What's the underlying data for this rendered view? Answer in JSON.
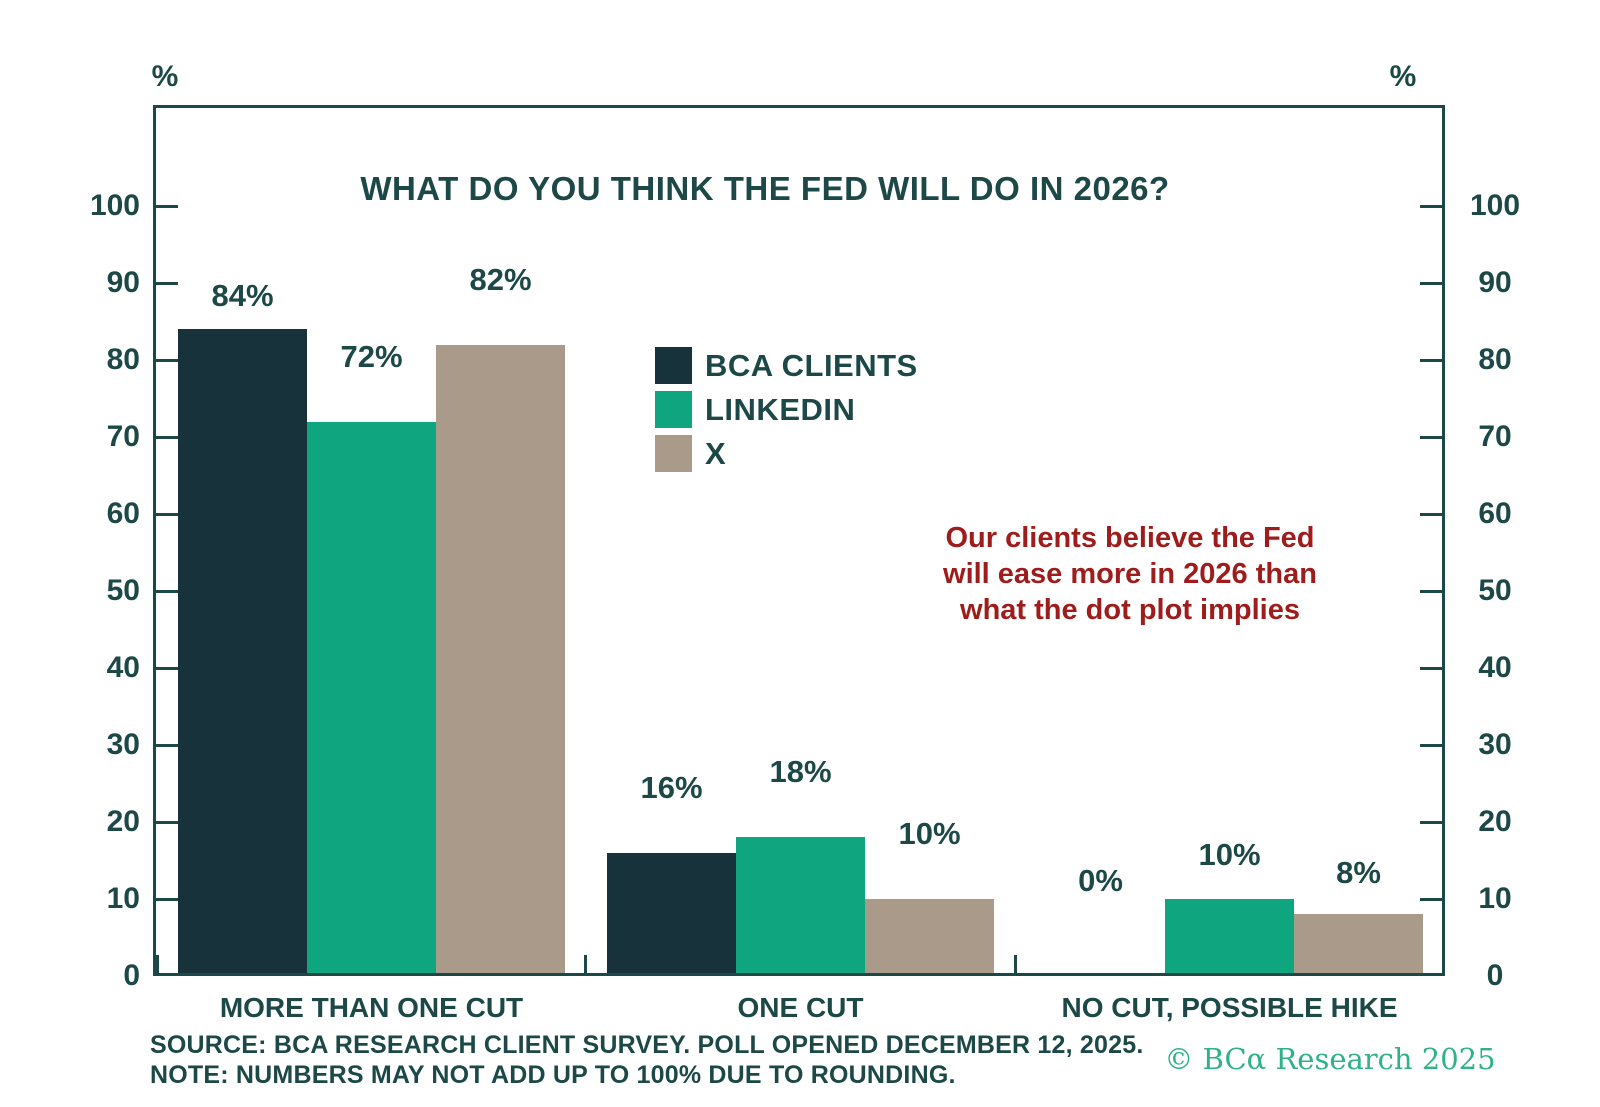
{
  "chart_data": {
    "type": "bar",
    "title": "WHAT DO YOU THINK THE FED WILL DO IN 2026?",
    "y_axis": {
      "unit_label": "%",
      "ticks": [
        0,
        10,
        20,
        30,
        40,
        50,
        60,
        70,
        80,
        90,
        100
      ],
      "range": [
        0,
        113
      ],
      "sides": "both"
    },
    "categories": [
      "MORE THAN ONE CUT",
      "ONE CUT",
      "NO CUT, POSSIBLE HIKE"
    ],
    "series": [
      {
        "name": "BCA CLIENTS",
        "color": "#17323a",
        "values": [
          84,
          16,
          0
        ]
      },
      {
        "name": "LINKEDIN",
        "color": "#0ea57f",
        "values": [
          72,
          18,
          10
        ]
      },
      {
        "name": "X",
        "color": "#a99a89",
        "values": [
          82,
          10,
          8
        ]
      }
    ],
    "value_label_format": "{v}%",
    "legend_position": "upper-middle",
    "grid": false
  },
  "annotation": {
    "lines": [
      "Our clients believe the Fed",
      "will ease more in 2026 than",
      "what the dot plot implies"
    ],
    "color": "#9e1c1c"
  },
  "footer": {
    "source": "SOURCE: BCA RESEARCH CLIENT SURVEY. POLL OPENED DECEMBER 12, 2025.",
    "note": "NOTE: NUMBERS MAY NOT ADD UP TO 100% DUE TO ROUNDING.",
    "copyright": "© BCα Research 2025"
  },
  "colors": {
    "ink": "#1d4848",
    "bar_dark": "#17323a",
    "bar_green": "#0ea57f",
    "bar_taupe": "#a99a89",
    "annotation_red": "#9e1c1c",
    "copyright_green": "#2fb286",
    "background": "#ffffff"
  }
}
